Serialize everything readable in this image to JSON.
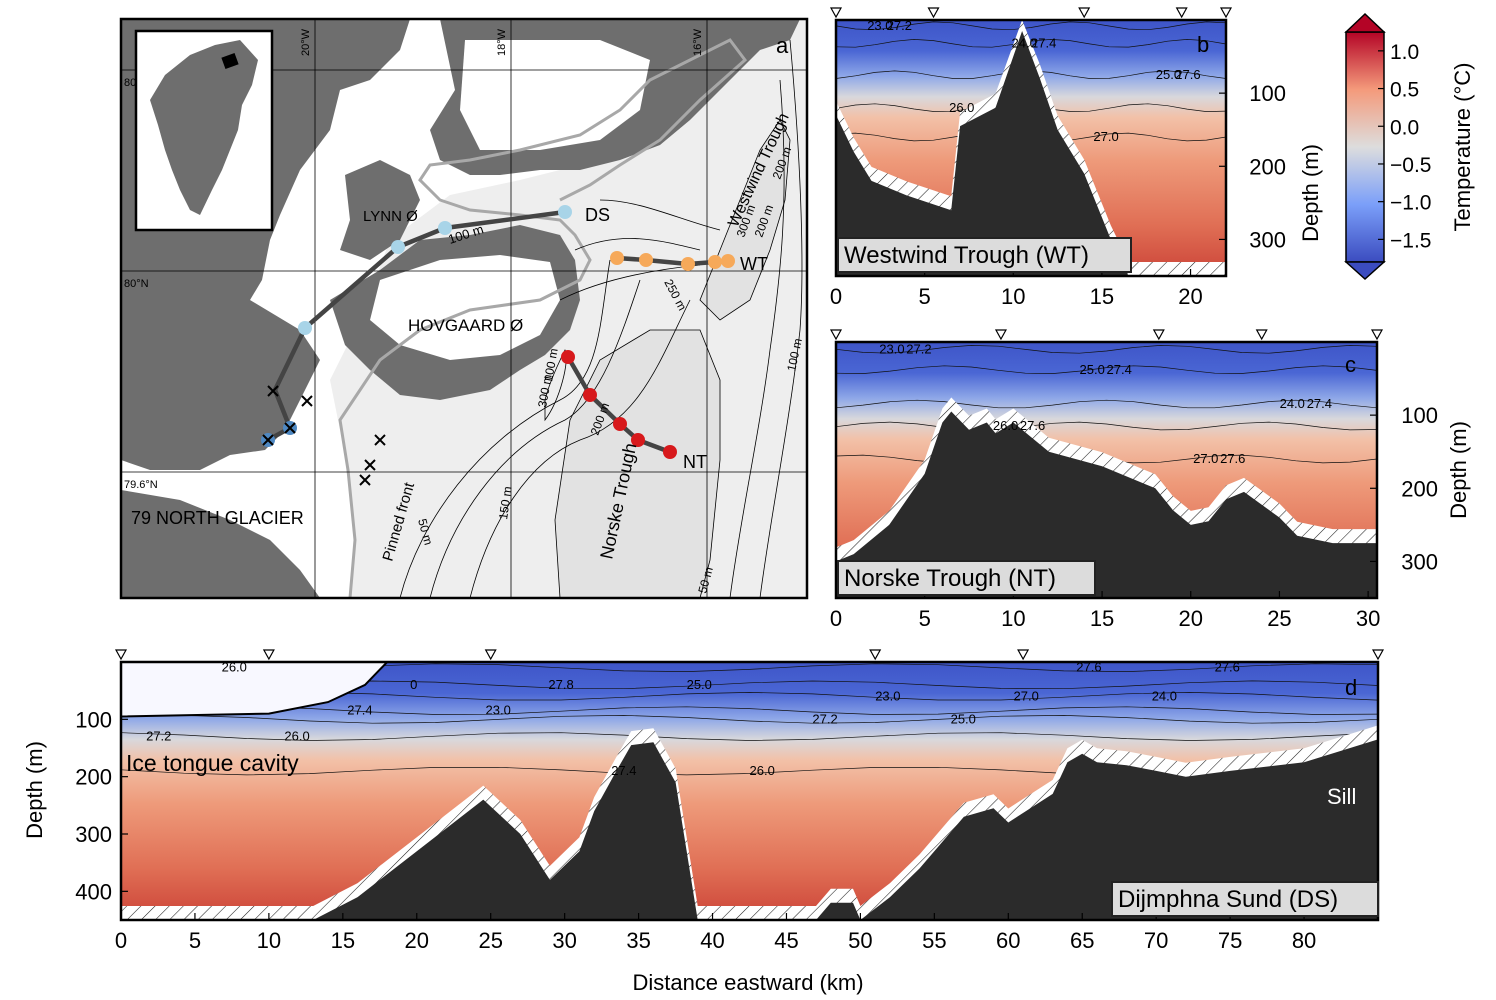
{
  "colorbar": {
    "title": "Temperature (°C)",
    "ticks": [
      "1.0",
      "0.5",
      "0.0",
      "−0.5",
      "−1.0",
      "−1.5"
    ],
    "tick_values": [
      1.0,
      0.5,
      0.0,
      -0.5,
      -1.0,
      -1.5
    ],
    "range": [
      -1.8,
      1.25
    ],
    "colors": {
      "cold": "#3b4cc0",
      "neutral": "#dddddd",
      "warm": "#b40426"
    }
  },
  "map": {
    "panel_letter": "a",
    "lon_labels": [
      "20°W",
      "18°W",
      "16°W"
    ],
    "lat_labels": [
      "80°N",
      "79.6°N"
    ],
    "lat_partial": "80",
    "place_labels": [
      "LYNN Ø",
      "HOVGAARD Ø",
      "79 NORTH GLACIER",
      "Pinned front",
      "Westwind Trough",
      "Norske Trough"
    ],
    "contour_labels": [
      "100 m",
      "250 m",
      "300 m",
      "200 m",
      "200 m",
      "100 m",
      "100 m",
      "200 m",
      "50 m",
      "150 m",
      "50 m",
      "300 m"
    ],
    "transect_labels": [
      "DS",
      "WT",
      "NT"
    ],
    "colors": {
      "land": "#6e6e6e",
      "ice": "#ffffff",
      "sea": "#eeeeee",
      "trough": "#e2e2e2",
      "ds": "#a8d4e8",
      "wt": "#f6a95a",
      "nt": "#d7191c",
      "ice_edge": "#a8a8a8"
    }
  },
  "chart_data": [
    {
      "id": "b",
      "type": "heatmap",
      "panel_letter": "b",
      "title": "Westwind Trough (WT)",
      "xlabel": "",
      "ylabel": "Depth (m)",
      "xlim": [
        0,
        22
      ],
      "ylim": [
        0,
        350
      ],
      "xticks": [
        0,
        5,
        10,
        15,
        20
      ],
      "yticks": [
        100,
        200,
        300
      ],
      "station_x": [
        0,
        5.5,
        14,
        19.5,
        22
      ],
      "isopycnal_labels": [
        "23.0",
        "24.0",
        "25.0",
        "26.0",
        "27.0",
        "27.2",
        "27.4",
        "27.6"
      ],
      "bathymetry": {
        "x": [
          0,
          1,
          2,
          4,
          6.5,
          7,
          9,
          10.5,
          11.5,
          12.5,
          14,
          15.5,
          16.5,
          22
        ],
        "depth": [
          130,
          180,
          220,
          240,
          260,
          145,
          120,
          15,
          80,
          150,
          210,
          300,
          350,
          350
        ]
      }
    },
    {
      "id": "c",
      "type": "heatmap",
      "panel_letter": "c",
      "title": "Norske Trough (NT)",
      "xlabel": "",
      "ylabel": "Depth (m)",
      "xlim": [
        0,
        30.5
      ],
      "ylim": [
        0,
        350
      ],
      "xticks": [
        0,
        5,
        10,
        15,
        20,
        25,
        30
      ],
      "yticks": [
        100,
        200,
        300
      ],
      "station_x": [
        0,
        9.3,
        18.2,
        24,
        30.5
      ],
      "isopycnal_labels": [
        "23.0",
        "25.0",
        "24.0",
        "26.0",
        "27.0",
        "27.2",
        "27.4",
        "27.4",
        "27.6",
        "27.6"
      ],
      "bathymetry": {
        "x": [
          0,
          1,
          3,
          5,
          6,
          6.5,
          7.5,
          8.5,
          9,
          10,
          11,
          12,
          15,
          18,
          19,
          20,
          21,
          22,
          23,
          25,
          26,
          28,
          30.5
        ],
        "depth": [
          300,
          290,
          250,
          180,
          110,
          95,
          120,
          110,
          125,
          110,
          130,
          150,
          170,
          200,
          230,
          250,
          245,
          215,
          205,
          240,
          265,
          275,
          275
        ]
      }
    },
    {
      "id": "d",
      "type": "heatmap",
      "panel_letter": "d",
      "title": "Dijmphna Sund (DS)",
      "xlabel": "Distance eastward (km)",
      "ylabel": "Depth (m)",
      "xlim": [
        0,
        85
      ],
      "ylim": [
        0,
        450
      ],
      "xticks": [
        0,
        5,
        10,
        15,
        20,
        25,
        30,
        35,
        40,
        45,
        50,
        55,
        60,
        65,
        70,
        75,
        80
      ],
      "yticks": [
        100,
        200,
        300,
        400
      ],
      "station_x": [
        0,
        10,
        25,
        51,
        61,
        85
      ],
      "isopycnal_labels": [
        "26.0",
        "25.0",
        "24.0",
        "23.0",
        "25.0",
        "26.0",
        "26.0",
        "27.6",
        "27.8",
        "27.0",
        "27.4",
        "27.2",
        "27.2",
        "27.4",
        "27.6",
        "0",
        "23.0"
      ],
      "annotations": [
        "Ice tongue cavity",
        "Sill"
      ],
      "ice_tongue": {
        "x": [
          0,
          10,
          14,
          16.5,
          18
        ],
        "base_depth": [
          95,
          90,
          70,
          40,
          0
        ]
      },
      "bathymetry": {
        "x": [
          0,
          13,
          16,
          20,
          24.5,
          27,
          29,
          31,
          32,
          33.5,
          34.5,
          36,
          37.5,
          39,
          43,
          47,
          48,
          49.5,
          50,
          52,
          54,
          56,
          57,
          59,
          60,
          63,
          64,
          65,
          66,
          68,
          70,
          72,
          75,
          80,
          85
        ],
        "depth": [
          450,
          450,
          410,
          330,
          240,
          300,
          380,
          330,
          260,
          190,
          145,
          140,
          210,
          450,
          450,
          450,
          420,
          420,
          450,
          410,
          360,
          300,
          270,
          255,
          280,
          230,
          175,
          160,
          175,
          180,
          190,
          200,
          190,
          175,
          135
        ]
      }
    }
  ]
}
